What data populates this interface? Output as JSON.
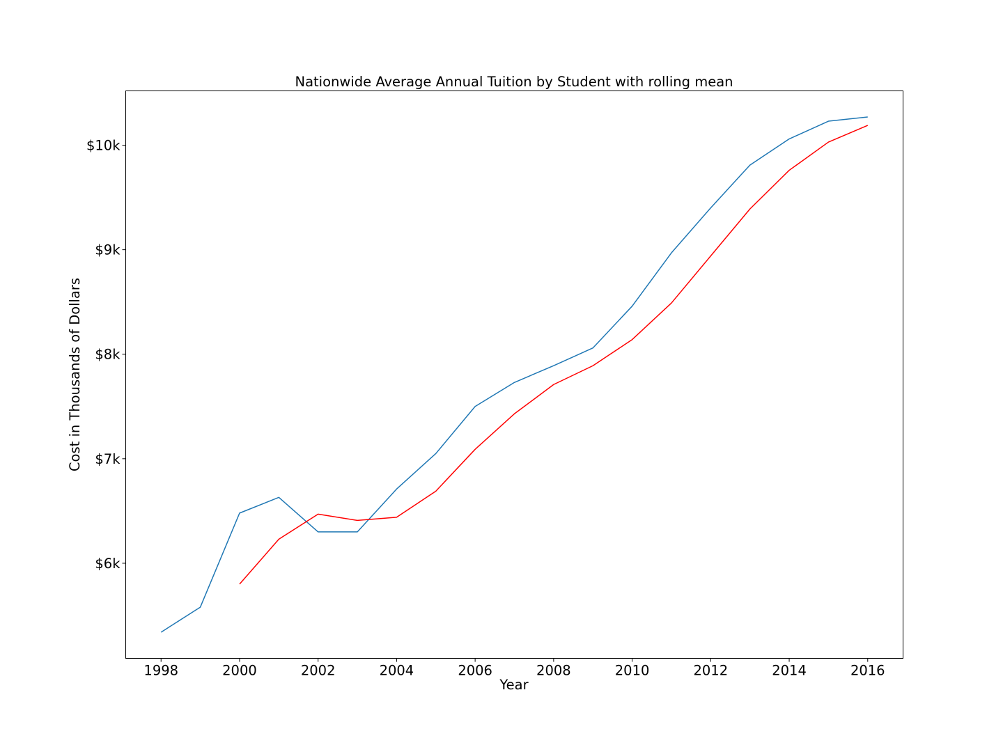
{
  "chart_data": {
    "type": "line",
    "title": "Nationwide Average Annual Tuition by Student with rolling mean",
    "xlabel": "Year",
    "ylabel": "Cost in Thousands of Dollars",
    "xlim": [
      1997.1,
      2016.9
    ],
    "ylim": [
      5.09,
      10.52
    ],
    "grid": false,
    "x_ticks": [
      1998,
      2000,
      2002,
      2004,
      2006,
      2008,
      2010,
      2012,
      2014,
      2016
    ],
    "x_tick_labels": [
      "1998",
      "2000",
      "2002",
      "2004",
      "2006",
      "2008",
      "2010",
      "2012",
      "2014",
      "2016"
    ],
    "y_ticks": [
      6,
      7,
      8,
      9,
      10
    ],
    "y_tick_labels": [
      "$6k",
      "$7k",
      "$8k",
      "$9k",
      "$10k"
    ],
    "series": [
      {
        "color": "#1f77b4",
        "x": [
          1998,
          1999,
          2000,
          2001,
          2002,
          2003,
          2004,
          2005,
          2006,
          2007,
          2008,
          2009,
          2010,
          2011,
          2012,
          2013,
          2014,
          2015,
          2016
        ],
        "y": [
          5.34,
          5.58,
          6.48,
          6.63,
          6.3,
          6.3,
          6.71,
          7.05,
          7.5,
          7.73,
          7.89,
          8.06,
          8.46,
          8.97,
          9.4,
          9.81,
          10.06,
          10.23,
          10.27
        ]
      },
      {
        "color": "#ff0000",
        "x": [
          2000,
          2001,
          2002,
          2003,
          2004,
          2005,
          2006,
          2007,
          2008,
          2009,
          2010,
          2011,
          2012,
          2013,
          2014,
          2015,
          2016
        ],
        "y": [
          5.8,
          6.23,
          6.47,
          6.41,
          6.44,
          6.69,
          7.09,
          7.43,
          7.71,
          7.89,
          8.14,
          8.49,
          8.94,
          9.39,
          9.76,
          10.03,
          10.19
        ]
      }
    ]
  }
}
